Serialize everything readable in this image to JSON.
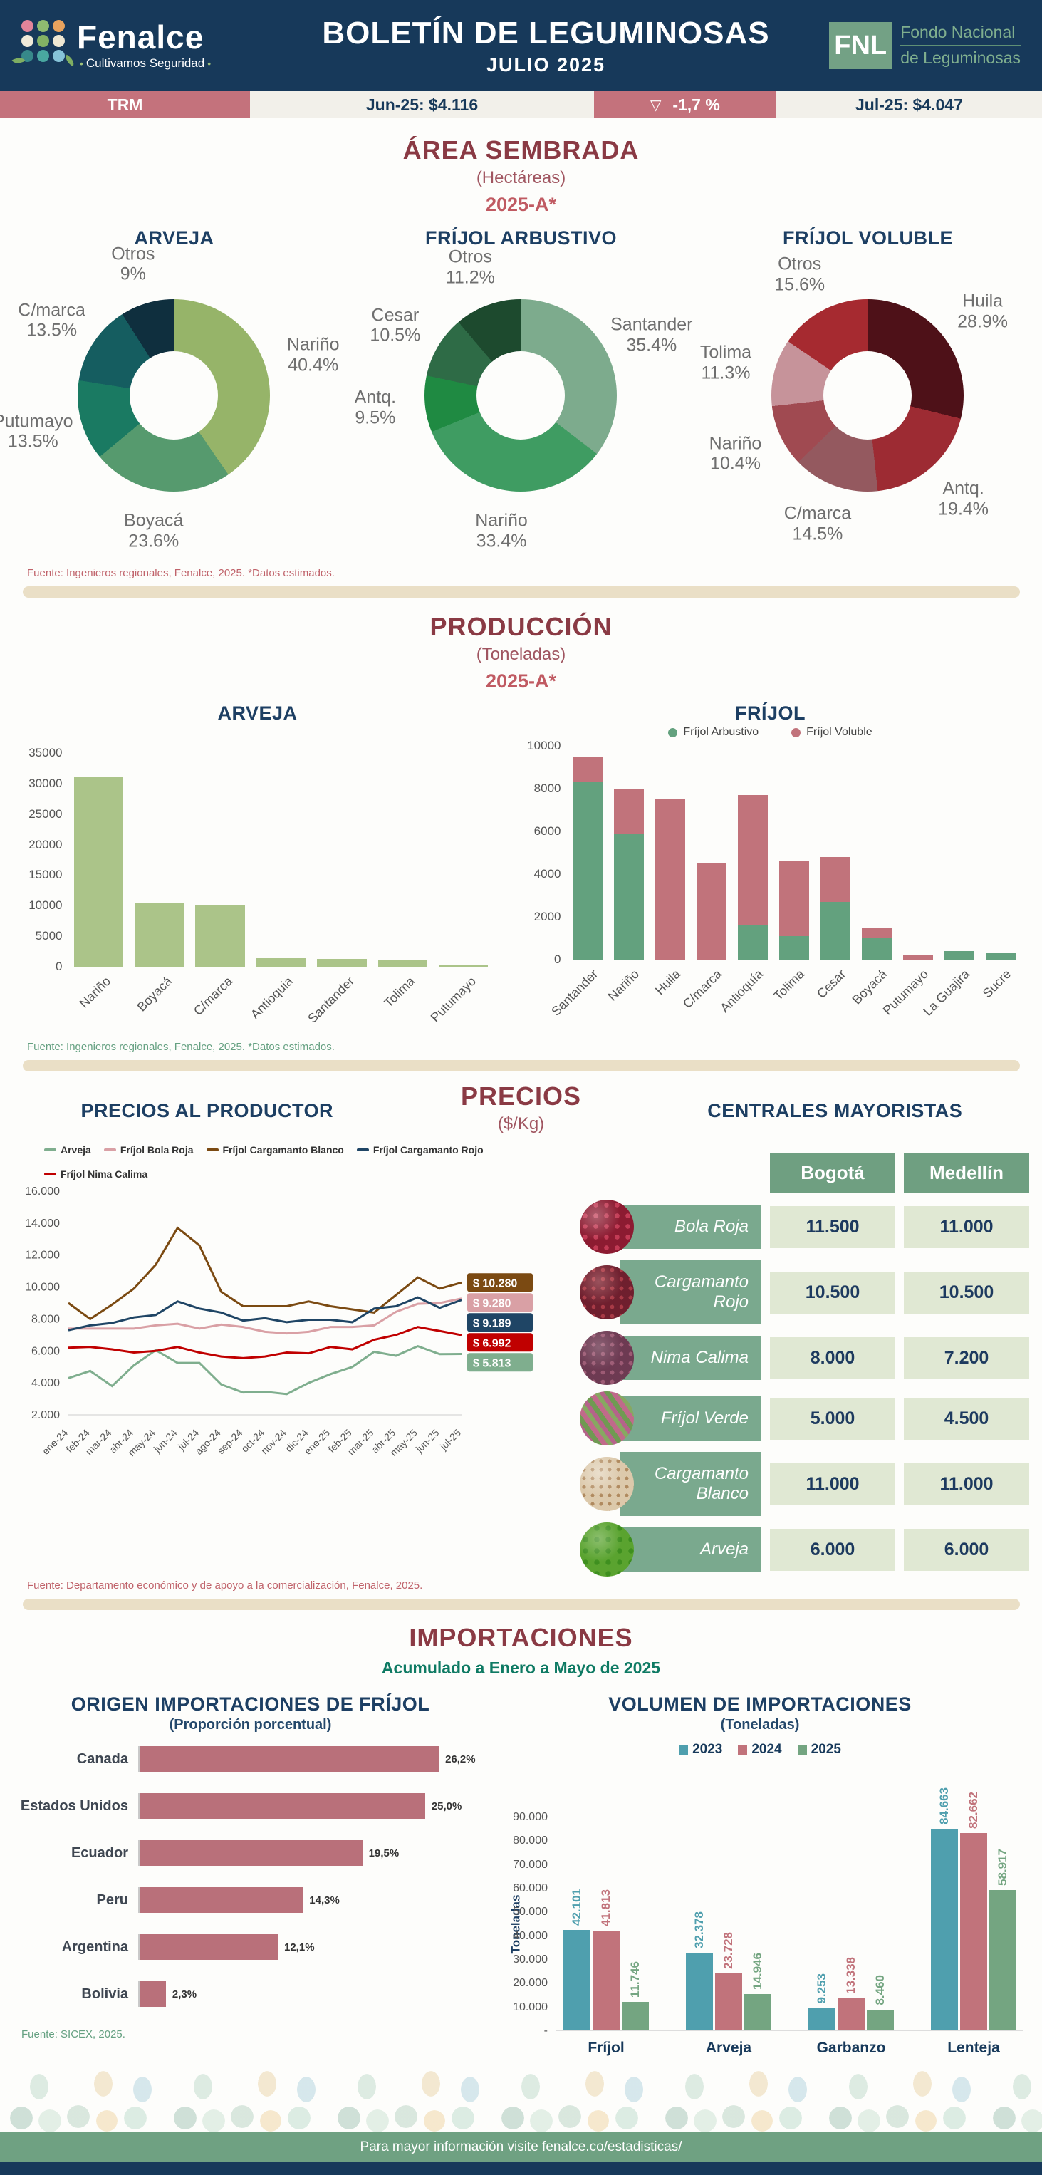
{
  "header": {
    "brand": {
      "name": "Fenalce",
      "tagline": "Cultivamos Seguridad"
    },
    "title": "BOLETÍN DE LEGUMINOSAS",
    "subtitle": "JULIO  2025",
    "fnl": {
      "abbr": "FNL",
      "line1": "Fondo Nacional",
      "line2": "de Leguminosas"
    }
  },
  "trm": {
    "label": "TRM",
    "jun": "Jun-25: $4.116",
    "arrow": "▽",
    "delta": "-1,7 %",
    "jul": "Jul-25: $4.047"
  },
  "sections": {
    "area": {
      "title": "ÁREA SEMBRADA",
      "unit": "(Hectáreas)",
      "period": "2025-A*",
      "source": "Fuente: Ingenieros regionales, Fenalce, 2025. *Datos estimados."
    },
    "produccion": {
      "title": "PRODUCCIÓN",
      "unit": "(Toneladas)",
      "period": "2025-A*",
      "source": "Fuente: Ingenieros regionales, Fenalce, 2025. *Datos estimados."
    },
    "precios": {
      "title": "PRECIOS",
      "unit": "($/Kg)",
      "left_title": "PRECIOS AL PRODUCTOR",
      "right_title": "CENTRALES MAYORISTAS",
      "source": "Fuente: Departamento económico y de apoyo a la comercialización,  Fenalce, 2025."
    },
    "importaciones": {
      "title": "IMPORTACIONES",
      "subtitle": "Acumulado a Enero a Mayo de 2025",
      "left_title": "ORIGEN IMPORTACIONES DE FRÍJOL",
      "left_sub": "(Proporción porcentual)",
      "right_title": "VOLUMEN DE IMPORTACIONES",
      "right_sub": "(Toneladas)",
      "source": "Fuente: SICEX, 2025."
    }
  },
  "footer": {
    "text": "Para mayor información visite fenalce.co/estadisticas/"
  },
  "chart_data": [
    {
      "type": "pie",
      "title": "ARVEJA",
      "donut": true,
      "slices": [
        {
          "label": "Nariño",
          "pct": 40.4,
          "display": "40.4%",
          "color": "#96b469"
        },
        {
          "label": "Boyacá",
          "pct": 23.6,
          "display": "23.6%",
          "color": "#569a6e"
        },
        {
          "label": "Putumayo",
          "pct": 13.5,
          "display": "13.5%",
          "color": "#1a7a62"
        },
        {
          "label": "C/marca",
          "pct": 13.5,
          "display": "13.5%",
          "color": "#155d60"
        },
        {
          "label": "Otros",
          "pct": 9.0,
          "display": "9%",
          "color": "#0f2f3e"
        }
      ]
    },
    {
      "type": "pie",
      "title": "FRÍJOL ARBUSTIVO",
      "donut": true,
      "slices": [
        {
          "label": "Santander",
          "pct": 35.4,
          "display": "35.4%",
          "color": "#7dab8d"
        },
        {
          "label": "Nariño",
          "pct": 33.4,
          "display": "33.4%",
          "color": "#3f9c62"
        },
        {
          "label": "Antq.",
          "pct": 9.5,
          "display": "9.5%",
          "color": "#1f8a42"
        },
        {
          "label": "Cesar",
          "pct": 10.5,
          "display": "10.5%",
          "color": "#2e6b46"
        },
        {
          "label": "Otros",
          "pct": 11.2,
          "display": "11.2%",
          "color": "#1d4a2e"
        }
      ]
    },
    {
      "type": "pie",
      "title": "FRÍJOL VOLUBLE",
      "donut": true,
      "slices": [
        {
          "label": "Huila",
          "pct": 28.9,
          "display": "28.9%",
          "color": "#4e1118"
        },
        {
          "label": "Antq.",
          "pct": 19.4,
          "display": "19.4%",
          "color": "#9d2b33"
        },
        {
          "label": "C/marca",
          "pct": 14.5,
          "display": "14.5%",
          "color": "#94595f"
        },
        {
          "label": "Nariño",
          "pct": 10.4,
          "display": "10.4%",
          "color": "#a04a51"
        },
        {
          "label": "Tolima",
          "pct": 11.3,
          "display": "11.3%",
          "color": "#c6939a"
        },
        {
          "label": "Otros",
          "pct": 15.6,
          "display": "15.6%",
          "color": "#a62a30"
        }
      ]
    },
    {
      "type": "bar",
      "title": "ARVEJA",
      "ylim": [
        0,
        35000
      ],
      "ytick": 5000,
      "bar_color": "#abc489",
      "categories": [
        "Nariño",
        "Boyacá",
        "C/marca",
        "Antioquia",
        "Santander",
        "Tolima",
        "Putumayo"
      ],
      "values": [
        31000,
        10400,
        10000,
        1400,
        1300,
        1000,
        300
      ]
    },
    {
      "type": "bar",
      "subtype": "stacked",
      "title": "FRÍJOL",
      "ylim": [
        0,
        10000
      ],
      "ytick": 2000,
      "categories": [
        "Santander",
        "Nariño",
        "Huila",
        "C/marca",
        "Antioquía",
        "Tolima",
        "Cesar",
        "Boyacá",
        "Putumayo",
        "La Guajira",
        "Sucre"
      ],
      "series": [
        {
          "name": "Fríjol Arbustivo",
          "color": "#63a17e",
          "values": [
            8300,
            5900,
            0,
            0,
            1600,
            1100,
            2700,
            1000,
            0,
            400,
            300
          ]
        },
        {
          "name": "Fríjol Voluble",
          "color": "#c1737b",
          "values": [
            1200,
            2100,
            7500,
            4500,
            6100,
            3550,
            2100,
            500,
            200,
            0,
            0
          ]
        }
      ]
    },
    {
      "type": "line",
      "title": "PRECIOS AL PRODUCTOR",
      "ylim": [
        2000,
        16000
      ],
      "ytick": 2000,
      "x": [
        "ene-24",
        "feb-24",
        "mar-24",
        "abr-24",
        "may-24",
        "jun-24",
        "jul-24",
        "ago-24",
        "sep-24",
        "oct-24",
        "nov-24",
        "dic-24",
        "ene-25",
        "feb-25",
        "mar-25",
        "abr-25",
        "may-25",
        "jun-25",
        "jul-25"
      ],
      "series": [
        {
          "name": "Arveja",
          "color": "#7fae8e",
          "final_label": "$ 5.813",
          "values": [
            4300,
            4750,
            3800,
            5100,
            6050,
            5250,
            5250,
            3900,
            3400,
            3450,
            3300,
            4000,
            4550,
            5000,
            5950,
            5700,
            6300,
            5800,
            5813
          ]
        },
        {
          "name": "Fríjol Bola Roja",
          "color": "#d9a0a5",
          "final_label": "$ 9.280",
          "values": [
            7400,
            7400,
            7400,
            7400,
            7600,
            7700,
            7400,
            7650,
            7500,
            7200,
            7100,
            7200,
            7500,
            7500,
            7600,
            8450,
            8950,
            9000,
            9280
          ]
        },
        {
          "name": "Fríjol Cargamanto Blanco",
          "color": "#7b4a12",
          "final_label": "$ 10.280",
          "values": [
            9000,
            8000,
            8900,
            9900,
            11400,
            13700,
            12600,
            9700,
            8800,
            8800,
            8800,
            9100,
            8800,
            8600,
            8400,
            9500,
            10600,
            9900,
            10280
          ]
        },
        {
          "name": "Fríjol Cargamanto Rojo",
          "color": "#1f4565",
          "final_label": "$ 9.189",
          "values": [
            7300,
            7600,
            7750,
            8100,
            8250,
            9100,
            8650,
            8400,
            7900,
            8050,
            7800,
            7950,
            7950,
            7800,
            8650,
            8800,
            9350,
            8700,
            9189
          ]
        },
        {
          "name": "Fríjol Nima Calima",
          "color": "#c00000",
          "final_label": "$ 6.992",
          "values": [
            6200,
            6250,
            6100,
            5900,
            6000,
            6250,
            5900,
            5650,
            5550,
            5650,
            5900,
            5850,
            6250,
            6100,
            6700,
            7000,
            7500,
            7250,
            6992
          ]
        }
      ]
    },
    {
      "type": "table",
      "title": "CENTRALES MAYORISTAS",
      "columns": [
        "Bogotá",
        "Medellín"
      ],
      "rows": [
        {
          "label": "Bola Roja",
          "bean": "bola-roja",
          "values": [
            "11.500",
            "11.000"
          ]
        },
        {
          "label": "Cargamanto Rojo",
          "bean": "cargamanto-rojo",
          "values": [
            "10.500",
            "10.500"
          ]
        },
        {
          "label": "Nima Calima",
          "bean": "nima-calima",
          "values": [
            "8.000",
            "7.200"
          ]
        },
        {
          "label": "Fríjol Verde",
          "bean": "frijol-verde",
          "values": [
            "5.000",
            "4.500"
          ]
        },
        {
          "label": "Cargamanto Blanco",
          "bean": "cargamanto-blanco",
          "values": [
            "11.000",
            "11.000"
          ]
        },
        {
          "label": "Arveja",
          "bean": "arveja",
          "values": [
            "6.000",
            "6.000"
          ]
        }
      ]
    },
    {
      "type": "bar",
      "subtype": "horizontal",
      "title": "ORIGEN IMPORTACIONES DE FRÍJOL",
      "xmax": 30,
      "bar_color": "#b9707a",
      "categories": [
        "Canada",
        "Estados Unidos",
        "Ecuador",
        "Peru",
        "Argentina",
        "Bolivia"
      ],
      "values": [
        26.2,
        25.0,
        19.5,
        14.3,
        12.1,
        2.3
      ],
      "labels": [
        "26,2%",
        "25,0%",
        "19,5%",
        "14,3%",
        "12,1%",
        "2,3%"
      ]
    },
    {
      "type": "bar",
      "subtype": "grouped",
      "title": "VOLUMEN DE IMPORTACIONES",
      "ylim": [
        0,
        90000
      ],
      "ytick": 10000,
      "ylabel": "Toneladas",
      "categories": [
        "Fríjol",
        "Arveja",
        "Garbanzo",
        "Lenteja"
      ],
      "series": [
        {
          "name": "2023",
          "color": "#4f9fae",
          "values": [
            42101,
            32378,
            9253,
            84663
          ],
          "labels": [
            "42.101",
            "32.378",
            "9.253",
            "84.663"
          ]
        },
        {
          "name": "2024",
          "color": "#c1737b",
          "values": [
            41813,
            23728,
            13338,
            82662
          ],
          "labels": [
            "41.813",
            "23.728",
            "13.338",
            "82.662"
          ]
        },
        {
          "name": "2025",
          "color": "#74a581",
          "values": [
            11746,
            14946,
            8460,
            58917
          ],
          "labels": [
            "11.746",
            "14.946",
            "8.460",
            "58.917"
          ]
        }
      ]
    }
  ]
}
